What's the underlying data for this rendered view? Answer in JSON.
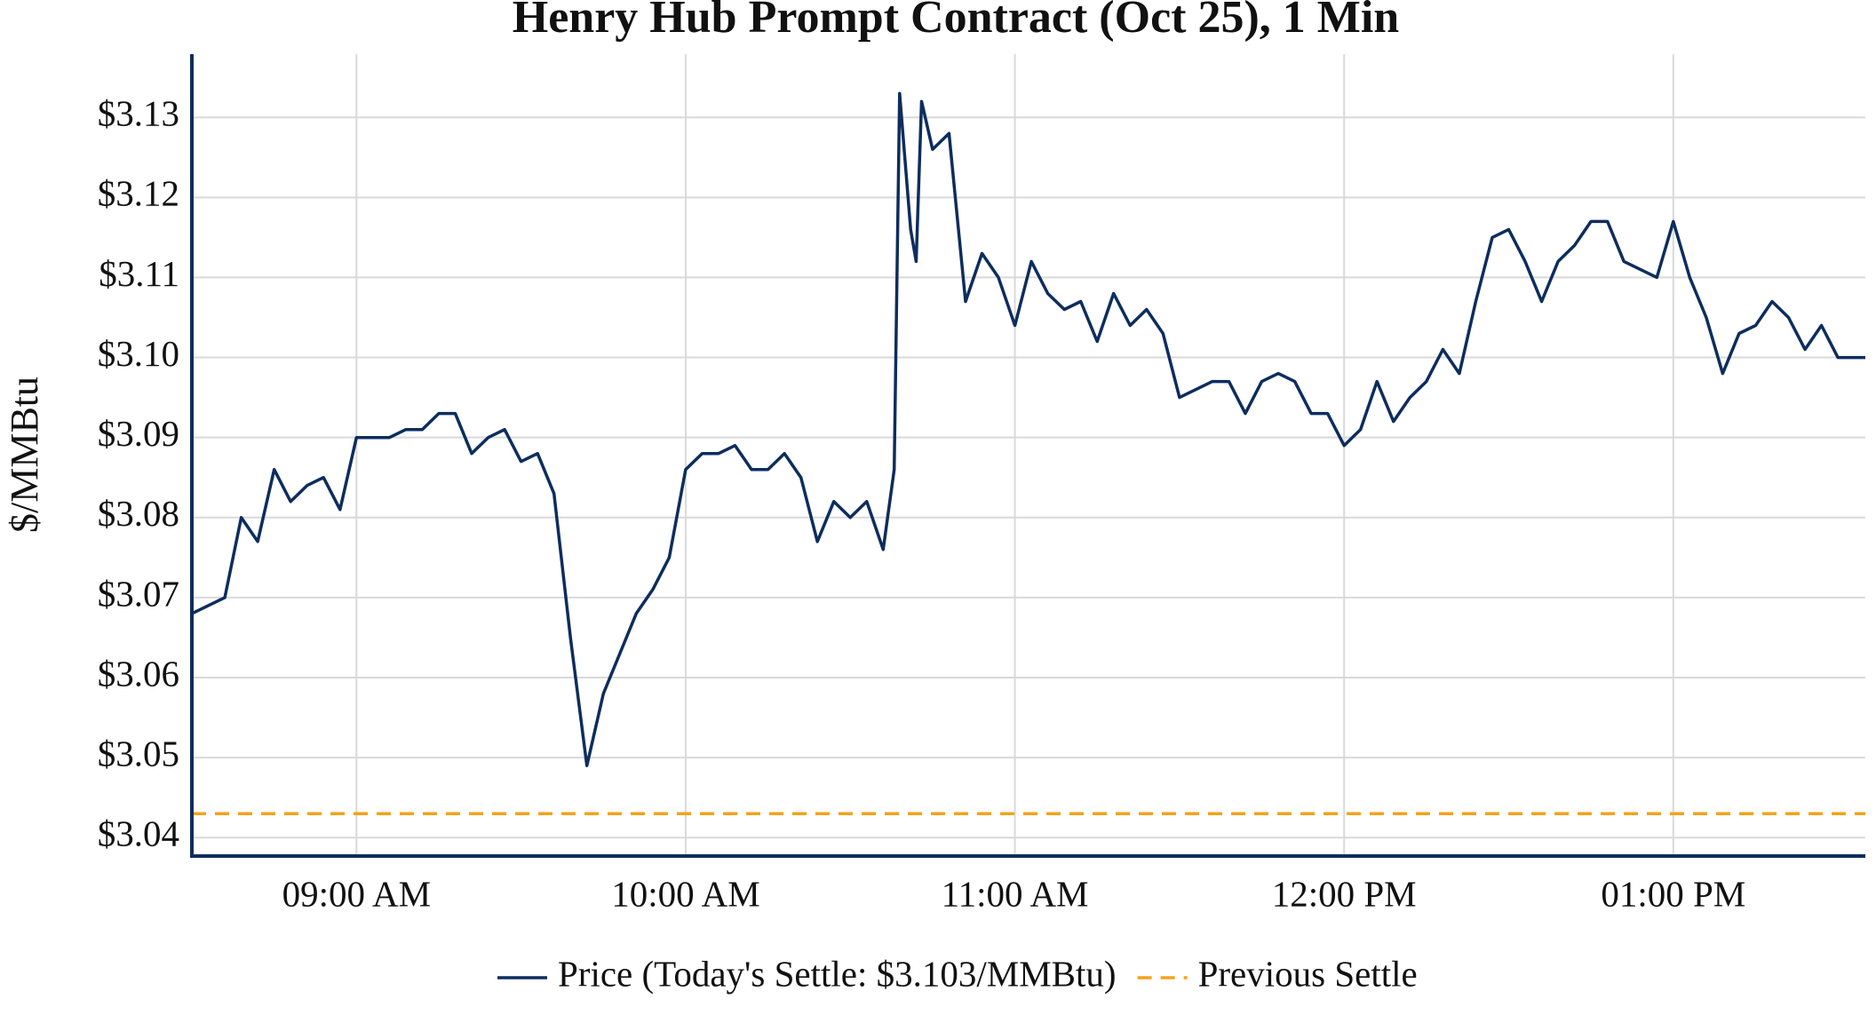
{
  "chart_data": {
    "type": "line",
    "title": "Henry Hub Prompt Contract (Oct 25), 1 Min",
    "y_label": "$/MMBtu",
    "x": [
      "08:30",
      "08:33",
      "08:36",
      "08:39",
      "08:42",
      "08:45",
      "08:48",
      "08:51",
      "08:54",
      "08:57",
      "09:00",
      "09:03",
      "09:06",
      "09:09",
      "09:12",
      "09:15",
      "09:18",
      "09:21",
      "09:24",
      "09:27",
      "09:30",
      "09:33",
      "09:36",
      "09:39",
      "09:42",
      "09:45",
      "09:48",
      "09:51",
      "09:54",
      "09:57",
      "10:00",
      "10:03",
      "10:06",
      "10:09",
      "10:12",
      "10:15",
      "10:18",
      "10:21",
      "10:24",
      "10:27",
      "10:30",
      "10:33",
      "10:36",
      "10:38",
      "10:39",
      "10:41",
      "10:42",
      "10:43",
      "10:45",
      "10:48",
      "10:51",
      "10:54",
      "10:57",
      "11:00",
      "11:03",
      "11:06",
      "11:09",
      "11:12",
      "11:15",
      "11:18",
      "11:21",
      "11:24",
      "11:27",
      "11:30",
      "11:33",
      "11:36",
      "11:39",
      "11:42",
      "11:45",
      "11:48",
      "11:51",
      "11:54",
      "11:57",
      "12:00",
      "12:03",
      "12:06",
      "12:09",
      "12:12",
      "12:15",
      "12:18",
      "12:21",
      "12:24",
      "12:27",
      "12:30",
      "12:33",
      "12:36",
      "12:39",
      "12:42",
      "12:45",
      "12:48",
      "12:51",
      "12:54",
      "12:57",
      "13:00",
      "13:03",
      "13:06",
      "13:09",
      "13:12",
      "13:15",
      "13:18",
      "13:21",
      "13:24",
      "13:27",
      "13:30",
      "13:33",
      "13:35"
    ],
    "series": [
      {
        "name": "Price (Today's Settle: $3.103/MMBtu)",
        "color": "#0d2d5e",
        "values": [
          3.068,
          3.069,
          3.07,
          3.08,
          3.077,
          3.086,
          3.082,
          3.084,
          3.085,
          3.081,
          3.09,
          3.09,
          3.09,
          3.091,
          3.091,
          3.093,
          3.093,
          3.088,
          3.09,
          3.091,
          3.087,
          3.088,
          3.083,
          3.065,
          3.049,
          3.058,
          3.063,
          3.068,
          3.071,
          3.075,
          3.086,
          3.088,
          3.088,
          3.089,
          3.086,
          3.086,
          3.088,
          3.085,
          3.077,
          3.082,
          3.08,
          3.082,
          3.076,
          3.086,
          3.133,
          3.116,
          3.112,
          3.132,
          3.126,
          3.128,
          3.107,
          3.113,
          3.11,
          3.104,
          3.112,
          3.108,
          3.106,
          3.107,
          3.102,
          3.108,
          3.104,
          3.106,
          3.103,
          3.095,
          3.096,
          3.097,
          3.097,
          3.093,
          3.097,
          3.098,
          3.097,
          3.093,
          3.093,
          3.089,
          3.091,
          3.097,
          3.092,
          3.095,
          3.097,
          3.101,
          3.098,
          3.107,
          3.115,
          3.116,
          3.112,
          3.107,
          3.112,
          3.114,
          3.117,
          3.117,
          3.112,
          3.111,
          3.11,
          3.117,
          3.11,
          3.105,
          3.098,
          3.103,
          3.104,
          3.107,
          3.105,
          3.101,
          3.104,
          3.1,
          3.1,
          3.1
        ]
      }
    ],
    "hlines": [
      {
        "name": "Previous Settle",
        "color": "#f5a21b",
        "value": 3.043
      }
    ],
    "xlim": [
      "08:30",
      "13:35"
    ],
    "xticks": [
      {
        "value": "09:00",
        "label": "09:00 AM"
      },
      {
        "value": "10:00",
        "label": "10:00 AM"
      },
      {
        "value": "11:00",
        "label": "11:00 AM"
      },
      {
        "value": "12:00",
        "label": "12:00 PM"
      },
      {
        "value": "13:00",
        "label": "01:00 PM"
      }
    ],
    "ylim": [
      3.0377,
      3.1379
    ],
    "yticks": [
      {
        "value": 3.04,
        "label": "$3.04"
      },
      {
        "value": 3.05,
        "label": "$3.05"
      },
      {
        "value": 3.06,
        "label": "$3.06"
      },
      {
        "value": 3.07,
        "label": "$3.07"
      },
      {
        "value": 3.08,
        "label": "$3.08"
      },
      {
        "value": 3.09,
        "label": "$3.09"
      },
      {
        "value": 3.1,
        "label": "$3.10"
      },
      {
        "value": 3.11,
        "label": "$3.11"
      },
      {
        "value": 3.12,
        "label": "$3.12"
      },
      {
        "value": 3.13,
        "label": "$3.13"
      }
    ],
    "grid": true
  }
}
